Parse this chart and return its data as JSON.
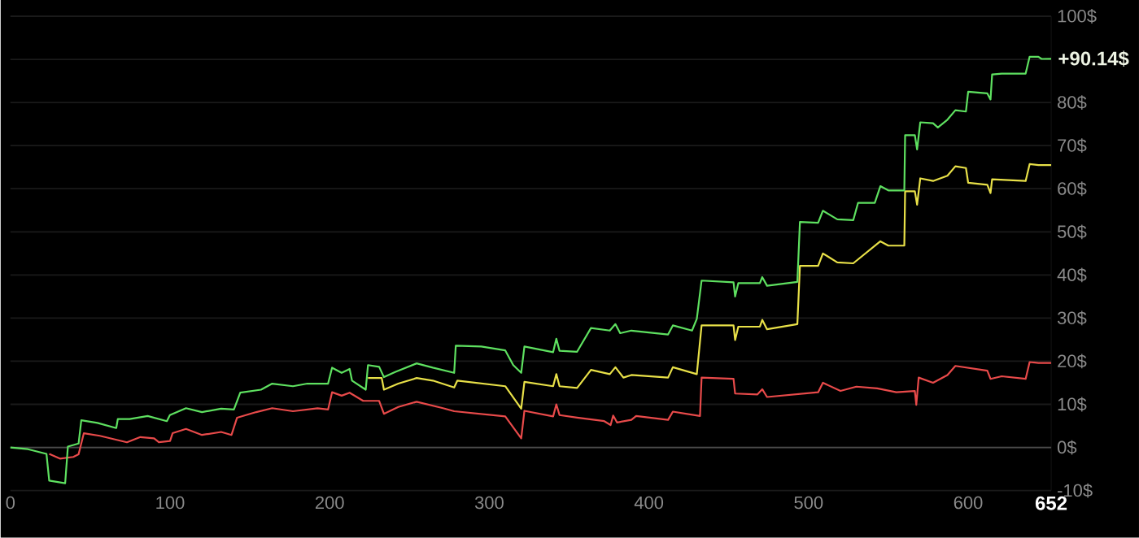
{
  "chart_data": {
    "type": "line",
    "xlim": [
      0,
      652
    ],
    "ylim": [
      -10,
      100
    ],
    "xticks": [
      0,
      100,
      200,
      300,
      400,
      500,
      600,
      652
    ],
    "yticks": [
      {
        "value": -10,
        "label": "-10$"
      },
      {
        "value": 0,
        "label": "0$"
      },
      {
        "value": 10,
        "label": "10$"
      },
      {
        "value": 20,
        "label": "20$"
      },
      {
        "value": 30,
        "label": "30$"
      },
      {
        "value": 40,
        "label": "40$"
      },
      {
        "value": 50,
        "label": "50$"
      },
      {
        "value": 60,
        "label": "60$"
      },
      {
        "value": 70,
        "label": "70$"
      },
      {
        "value": 80,
        "label": "80$"
      },
      {
        "value": 90,
        "label": null
      },
      {
        "value": 100,
        "label": "100$"
      }
    ],
    "grid": "y",
    "marker": "none",
    "line_style": "solid",
    "ref_lines": [
      {
        "axis": "y",
        "value": 0,
        "color": "#4a4a4a"
      }
    ],
    "annotations": [
      {
        "text": "+90.14$",
        "x": 652,
        "y": 90.14
      }
    ],
    "series": [
      {
        "color": "#e84a4a",
        "x": [
          24.3,
          31,
          39.4,
          42.7,
          46,
          56,
          73,
          81.4,
          90,
          93,
          100,
          101.6,
          110,
          120,
          132,
          138.5,
          142,
          154,
          164,
          177,
          192.4,
          199,
          201.5,
          207.5,
          212.5,
          221,
          231,
          234,
          243,
          254.5,
          271,
          278,
          310,
          320,
          322,
          340,
          342,
          344,
          355,
          372,
          376,
          377.6,
          380,
          389,
          392,
          412,
          415,
          432,
          433,
          453,
          454,
          468,
          471,
          474,
          506,
          509,
          520,
          530,
          543,
          555,
          566.6,
          567.5,
          569,
          578,
          587,
          592,
          612,
          614,
          621,
          636,
          638.5,
          644,
          652
        ],
        "values": [
          -1.5,
          -2.6,
          -2.2,
          -1.6,
          3.3,
          2.7,
          1.2,
          2.4,
          2.1,
          1.2,
          1.5,
          3.3,
          4.3,
          2.9,
          3.6,
          2.9,
          6.9,
          8.2,
          9.1,
          8.4,
          9.1,
          8.8,
          12.8,
          12,
          12.7,
          10.8,
          10.8,
          7.8,
          9.4,
          10.6,
          9.1,
          8.4,
          7.2,
          2.1,
          8.5,
          7.2,
          10,
          7.5,
          6.9,
          6.1,
          5.2,
          7.4,
          5.8,
          6.4,
          7.3,
          6.4,
          8.3,
          7.3,
          16.2,
          15.9,
          12.5,
          12.3,
          13.5,
          11.7,
          12.8,
          15,
          13.1,
          14.1,
          13.7,
          12.8,
          13.1,
          9.9,
          16.2,
          15,
          16.8,
          18.9,
          17.8,
          15.9,
          16.5,
          15.9,
          19.8,
          19.6,
          19.6
        ]
      },
      {
        "color": "#e8e048",
        "x": [
          224,
          232.6,
          234,
          243,
          254.5,
          264.6,
          278,
          280,
          310,
          320,
          322,
          340,
          342,
          344,
          355,
          363.7,
          375.5,
          379,
          384,
          389,
          412,
          415,
          430,
          433,
          453,
          454,
          456,
          469.5,
          471,
          474,
          493,
          494.6,
          506,
          509,
          518,
          528,
          545,
          550,
          560,
          560.5,
          566.6,
          568,
          570,
          578,
          587,
          592,
          598.6,
          600,
          612,
          614,
          615,
          636,
          638.5,
          644,
          652
        ],
        "values": [
          16.1,
          16.1,
          13.4,
          14.8,
          16.1,
          15.5,
          13.9,
          15.5,
          14.2,
          9,
          15.2,
          14.2,
          17,
          14.2,
          13.8,
          18,
          17,
          18.6,
          16.2,
          16.8,
          16.2,
          18.6,
          17,
          28.3,
          28.3,
          24.9,
          28,
          28,
          29.6,
          27.4,
          28.6,
          42.1,
          42.1,
          45,
          42.9,
          42.7,
          47.8,
          46.8,
          46.8,
          59.4,
          59.4,
          56.3,
          62.4,
          61.8,
          63,
          65.2,
          64.8,
          61.4,
          60.9,
          59,
          62.2,
          61.8,
          65.7,
          65.5,
          65.5
        ]
      },
      {
        "color": "#5ee060",
        "x": [
          0,
          11,
          22.6,
          24.3,
          34.3,
          36,
          42.7,
          44.4,
          54.5,
          66.3,
          67.3,
          74.7,
          86,
          98,
          99.9,
          110,
          120,
          132,
          140,
          144,
          157,
          164,
          177,
          186,
          199,
          201.5,
          207.5,
          212.5,
          214,
          222.6,
          224,
          231,
          234,
          241,
          254.5,
          264.6,
          278,
          279,
          295,
          310,
          315,
          320,
          322,
          340,
          342,
          344,
          355,
          363.7,
          375.5,
          379,
          382,
          389,
          412,
          415,
          427,
          430,
          433,
          453,
          454,
          456,
          469.5,
          471,
          474,
          493,
          494.6,
          506,
          509,
          518,
          528,
          531,
          541.5,
          545,
          550,
          560,
          560.5,
          566.6,
          568,
          570,
          578,
          581,
          587,
          592,
          598.6,
          600,
          612,
          614,
          615,
          621,
          636,
          638.5,
          644,
          646,
          652
        ],
        "values": [
          0,
          -0.4,
          -1.5,
          -7.7,
          -8.3,
          0.2,
          0.9,
          6.3,
          5.7,
          4.5,
          6.6,
          6.6,
          7.3,
          6.1,
          7.5,
          9.1,
          8.2,
          9,
          8.8,
          12.7,
          13.4,
          14.8,
          14.2,
          14.8,
          14.8,
          18.5,
          17.3,
          18.2,
          15.5,
          13.4,
          19.1,
          18.7,
          16.3,
          17.5,
          19.5,
          18.5,
          17.3,
          23.6,
          23.4,
          22.5,
          19.1,
          17.3,
          23.4,
          22.1,
          25.2,
          22.4,
          22.2,
          27.7,
          27.1,
          28.6,
          26.5,
          27.1,
          26.2,
          28.3,
          27.1,
          29.8,
          38.7,
          38.3,
          35,
          38.1,
          38.1,
          39.5,
          37.5,
          38.4,
          52.3,
          52.1,
          54.9,
          52.9,
          52.7,
          56.7,
          56.7,
          60.6,
          59.6,
          59.6,
          72.4,
          72.4,
          69.1,
          75.4,
          75.2,
          74.2,
          76,
          78.2,
          77.9,
          82.5,
          82.1,
          80.7,
          86.5,
          86.7,
          86.7,
          90.6,
          90.6,
          90.1,
          90.14
        ]
      }
    ]
  }
}
